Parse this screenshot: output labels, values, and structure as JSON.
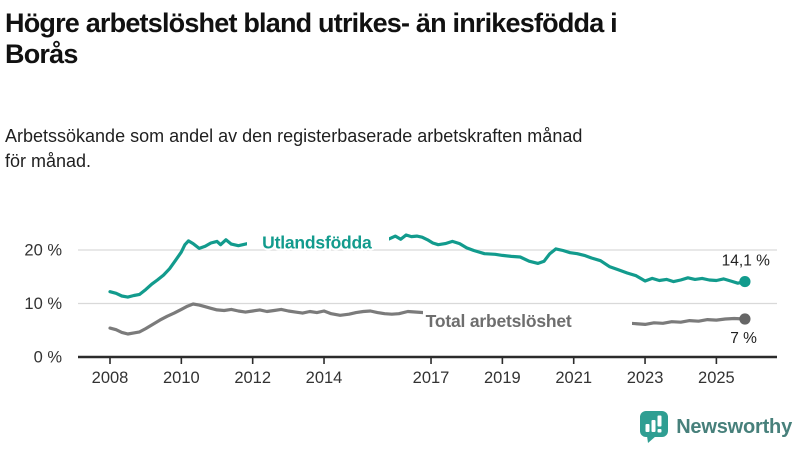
{
  "header": {
    "title_line1": "Högre arbetslöshet bland utrikes- än inrikesfödda i",
    "title_line2": "Borås",
    "subtitle_line1": "Arbetssökande som andel av den registerbaserade arbetskraften månad",
    "subtitle_line2": "för månad."
  },
  "chart_data": {
    "type": "line",
    "title": "Högre arbetslöshet bland utrikes- än inrikesfödda i Borås",
    "subtitle": "Arbetssökande som andel av den registerbaserade arbetskraften månad för månad.",
    "unit": "%",
    "ylim": [
      0,
      24
    ],
    "grid": "horizontal",
    "legend_position": "inline-labels",
    "y_ticks": [
      {
        "value": 0,
        "label": "0 %"
      },
      {
        "value": 10,
        "label": "10 %"
      },
      {
        "value": 20,
        "label": "20 %"
      }
    ],
    "x_ticks": [
      {
        "value": 2008,
        "label": "2008"
      },
      {
        "value": 2010,
        "label": "2010"
      },
      {
        "value": 2012,
        "label": "2012"
      },
      {
        "value": 2014,
        "label": "2014"
      },
      {
        "value": 2017,
        "label": "2017"
      },
      {
        "value": 2019,
        "label": "2019"
      },
      {
        "value": 2021,
        "label": "2021"
      },
      {
        "value": 2023,
        "label": "2023"
      },
      {
        "value": 2025,
        "label": "2025"
      }
    ],
    "series": [
      {
        "name": "Utlandsfödda",
        "color": "#129b8d",
        "label_color": "#129b8d",
        "end_label": "14,1 %",
        "end_value": 14.1,
        "label_pos": [
          2013.8,
          20.3
        ],
        "label_anchor": "middle",
        "backdrop": [
          247,
          231,
          142,
          18
        ],
        "points": [
          [
            2008.0,
            12.2
          ],
          [
            2008.17,
            11.9
          ],
          [
            2008.33,
            11.4
          ],
          [
            2008.5,
            11.2
          ],
          [
            2008.67,
            11.5
          ],
          [
            2008.83,
            11.7
          ],
          [
            2009.0,
            12.6
          ],
          [
            2009.17,
            13.6
          ],
          [
            2009.33,
            14.4
          ],
          [
            2009.5,
            15.3
          ],
          [
            2009.67,
            16.5
          ],
          [
            2009.83,
            18.0
          ],
          [
            2010.0,
            19.6
          ],
          [
            2010.1,
            21.0
          ],
          [
            2010.2,
            21.7
          ],
          [
            2010.33,
            21.2
          ],
          [
            2010.5,
            20.3
          ],
          [
            2010.67,
            20.7
          ],
          [
            2010.83,
            21.3
          ],
          [
            2011.0,
            21.6
          ],
          [
            2011.1,
            21.0
          ],
          [
            2011.25,
            21.9
          ],
          [
            2011.4,
            21.1
          ],
          [
            2011.6,
            20.8
          ],
          [
            2011.8,
            21.1
          ],
          [
            2012.0,
            21.4
          ],
          [
            2012.2,
            21.0
          ],
          [
            2012.4,
            21.5
          ],
          [
            2012.6,
            21.8
          ],
          [
            2012.8,
            21.4
          ],
          [
            2013.0,
            21.6
          ],
          [
            2013.2,
            21.2
          ],
          [
            2013.4,
            21.5
          ],
          [
            2013.6,
            21.3
          ],
          [
            2013.8,
            21.6
          ],
          [
            2014.0,
            21.8
          ],
          [
            2014.2,
            21.4
          ],
          [
            2014.4,
            20.9
          ],
          [
            2014.6,
            20.5
          ],
          [
            2014.8,
            20.8
          ],
          [
            2015.0,
            20.6
          ],
          [
            2015.2,
            21.2
          ],
          [
            2015.4,
            21.9
          ],
          [
            2015.6,
            22.2
          ],
          [
            2015.8,
            22.0
          ],
          [
            2016.0,
            22.6
          ],
          [
            2016.15,
            22.0
          ],
          [
            2016.3,
            22.8
          ],
          [
            2016.45,
            22.5
          ],
          [
            2016.6,
            22.6
          ],
          [
            2016.75,
            22.4
          ],
          [
            2016.9,
            21.9
          ],
          [
            2017.05,
            21.3
          ],
          [
            2017.2,
            21.0
          ],
          [
            2017.4,
            21.2
          ],
          [
            2017.6,
            21.6
          ],
          [
            2017.8,
            21.2
          ],
          [
            2018.0,
            20.4
          ],
          [
            2018.2,
            19.9
          ],
          [
            2018.5,
            19.3
          ],
          [
            2018.8,
            19.2
          ],
          [
            2019.0,
            19.0
          ],
          [
            2019.25,
            18.8
          ],
          [
            2019.5,
            18.7
          ],
          [
            2019.75,
            17.9
          ],
          [
            2020.0,
            17.5
          ],
          [
            2020.17,
            17.9
          ],
          [
            2020.33,
            19.3
          ],
          [
            2020.5,
            20.2
          ],
          [
            2020.7,
            19.9
          ],
          [
            2020.9,
            19.5
          ],
          [
            2021.1,
            19.3
          ],
          [
            2021.3,
            19.0
          ],
          [
            2021.5,
            18.5
          ],
          [
            2021.75,
            18.0
          ],
          [
            2022.0,
            16.9
          ],
          [
            2022.25,
            16.3
          ],
          [
            2022.5,
            15.7
          ],
          [
            2022.75,
            15.2
          ],
          [
            2022.9,
            14.6
          ],
          [
            2023.0,
            14.2
          ],
          [
            2023.2,
            14.7
          ],
          [
            2023.4,
            14.3
          ],
          [
            2023.6,
            14.5
          ],
          [
            2023.8,
            14.1
          ],
          [
            2024.0,
            14.4
          ],
          [
            2024.2,
            14.8
          ],
          [
            2024.4,
            14.5
          ],
          [
            2024.6,
            14.7
          ],
          [
            2024.8,
            14.4
          ],
          [
            2025.0,
            14.3
          ],
          [
            2025.2,
            14.6
          ],
          [
            2025.4,
            14.2
          ],
          [
            2025.6,
            13.8
          ],
          [
            2025.8,
            14.1
          ]
        ]
      },
      {
        "name": "Total arbetslöshet",
        "color": "#7b7b7b",
        "label_color": "#6e6e6e",
        "end_label": "7 %",
        "end_value": 7.1,
        "label_pos": [
          2016.85,
          5.6
        ],
        "label_anchor": "start",
        "backdrop": [
          423,
          310,
          209,
          20
        ],
        "points": [
          [
            2008.0,
            5.4
          ],
          [
            2008.17,
            5.1
          ],
          [
            2008.33,
            4.6
          ],
          [
            2008.5,
            4.3
          ],
          [
            2008.67,
            4.5
          ],
          [
            2008.83,
            4.7
          ],
          [
            2009.0,
            5.3
          ],
          [
            2009.2,
            6.1
          ],
          [
            2009.4,
            6.9
          ],
          [
            2009.6,
            7.6
          ],
          [
            2009.8,
            8.2
          ],
          [
            2010.0,
            8.9
          ],
          [
            2010.17,
            9.5
          ],
          [
            2010.33,
            9.9
          ],
          [
            2010.5,
            9.7
          ],
          [
            2010.67,
            9.4
          ],
          [
            2010.83,
            9.1
          ],
          [
            2011.0,
            8.8
          ],
          [
            2011.2,
            8.7
          ],
          [
            2011.4,
            8.9
          ],
          [
            2011.6,
            8.6
          ],
          [
            2011.8,
            8.4
          ],
          [
            2012.0,
            8.6
          ],
          [
            2012.2,
            8.8
          ],
          [
            2012.4,
            8.5
          ],
          [
            2012.6,
            8.7
          ],
          [
            2012.8,
            8.9
          ],
          [
            2013.0,
            8.6
          ],
          [
            2013.2,
            8.4
          ],
          [
            2013.4,
            8.2
          ],
          [
            2013.6,
            8.5
          ],
          [
            2013.8,
            8.3
          ],
          [
            2014.0,
            8.6
          ],
          [
            2014.2,
            8.1
          ],
          [
            2014.45,
            7.8
          ],
          [
            2014.7,
            8.0
          ],
          [
            2014.9,
            8.3
          ],
          [
            2015.1,
            8.5
          ],
          [
            2015.3,
            8.6
          ],
          [
            2015.5,
            8.3
          ],
          [
            2015.7,
            8.1
          ],
          [
            2015.9,
            8.0
          ],
          [
            2016.1,
            8.1
          ],
          [
            2016.35,
            8.5
          ],
          [
            2016.6,
            8.4
          ],
          [
            2016.8,
            8.3
          ],
          [
            2017.0,
            8.2
          ],
          [
            2017.3,
            8.0
          ],
          [
            2017.6,
            7.9
          ],
          [
            2018.0,
            7.7
          ],
          [
            2018.4,
            7.6
          ],
          [
            2018.8,
            7.5
          ],
          [
            2019.2,
            7.4
          ],
          [
            2019.6,
            7.3
          ],
          [
            2020.0,
            7.6
          ],
          [
            2020.4,
            8.2
          ],
          [
            2020.7,
            8.0
          ],
          [
            2021.0,
            7.7
          ],
          [
            2021.4,
            7.3
          ],
          [
            2021.8,
            6.9
          ],
          [
            2022.2,
            6.6
          ],
          [
            2022.6,
            6.3
          ],
          [
            2023.0,
            6.1
          ],
          [
            2023.25,
            6.4
          ],
          [
            2023.5,
            6.3
          ],
          [
            2023.75,
            6.6
          ],
          [
            2024.0,
            6.5
          ],
          [
            2024.25,
            6.8
          ],
          [
            2024.5,
            6.7
          ],
          [
            2024.75,
            7.0
          ],
          [
            2025.0,
            6.9
          ],
          [
            2025.25,
            7.1
          ],
          [
            2025.5,
            7.2
          ],
          [
            2025.8,
            7.1
          ]
        ]
      }
    ]
  },
  "branding": {
    "logo_text": "Newsworthy",
    "logo_icon": "bar-chart-speech-bubble-icon",
    "logo_color": "#2f9e92",
    "logo_text_color": "#47807b"
  }
}
